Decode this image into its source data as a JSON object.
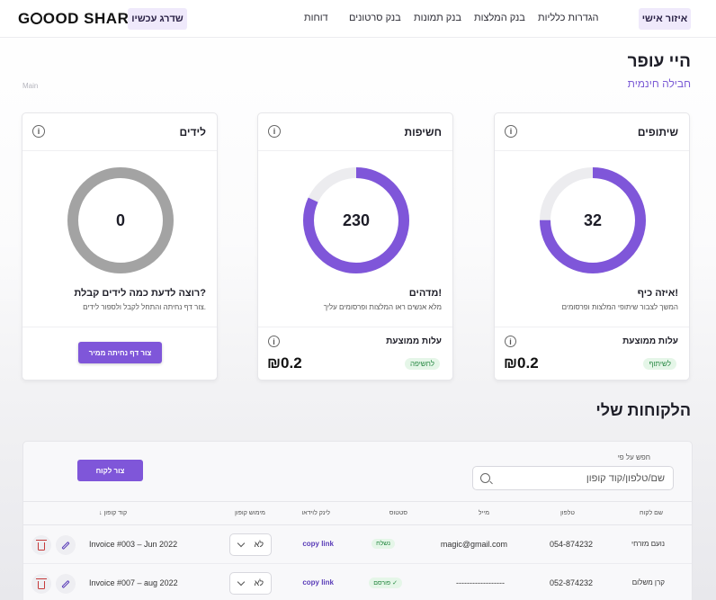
{
  "nav": {
    "logo_text": "OOD SHARE",
    "upgrade_button": "שדרג עכשיו",
    "links": [
      "דוחות",
      "בנק סרטונים",
      "בנק תמונות",
      "בנק המלצות",
      "הגדרות כלליות"
    ],
    "personal_area_button": "איזור אישי"
  },
  "header": {
    "greeting": "היי עופר",
    "business_name": "חבילה חינמית",
    "main_label": "Main"
  },
  "cards": [
    {
      "title": "שיתופים",
      "value": "32",
      "progress": 0.75,
      "message_title": "איזה כיף!",
      "message_subtitle": "המשך לצבור שיתופי המלצות ופרסומים",
      "avg_label": "עלות ממוצעת",
      "avg_value": "₪0.2",
      "tag": "לשיתוף"
    },
    {
      "title": "חשיפות",
      "value": "230",
      "progress": 0.82,
      "message_title": "מדהים!",
      "message_subtitle": "מלא אנשים ראו המלצות ופרסומים עליך",
      "avg_label": "עלות ממוצעת",
      "avg_value": "₪0.2",
      "tag": "לחשיפה"
    },
    {
      "title": "לידים",
      "value": "0",
      "progress": 0,
      "message_title": "רוצה לדעת כמה לידים קבלת?",
      "message_subtitle": "צור דף נחיתה והתחל לקבל ולספור לידים.",
      "cta_button": "צור דף נחיתה ממיר"
    }
  ],
  "colors": {
    "accent": "#7f56d9",
    "ring_track": "#ececef",
    "ring_empty": "#a3a3a3"
  },
  "clients": {
    "title": "הלקוחות שלי",
    "search_label": "חפש על פי",
    "search_placeholder": "שם/טלפון/קוד קופון",
    "create_button": "צור לקוח",
    "columns": {
      "name": "שם לקוח",
      "phone": "טלפון",
      "email": "מייל",
      "status": "סטטוס",
      "video_link": "לינק לוידאו",
      "coupon_use": "מימוש קופון",
      "coupon_code": "קוד קופון"
    },
    "rows": [
      {
        "name": "נועם מזרחי",
        "phone": "054-874232",
        "email": "magic@gmail.com",
        "status": "נשלח",
        "link": "copy link",
        "coupon_use": "לא",
        "coupon": "Invoice #003 – Jun 2022"
      },
      {
        "name": "קרן משלום",
        "phone": "052-874232",
        "email": "------------------",
        "status": "פורסם ✓",
        "link": "copy link",
        "coupon_use": "לא",
        "coupon": "Invoice #007 – aug 2022"
      }
    ]
  }
}
